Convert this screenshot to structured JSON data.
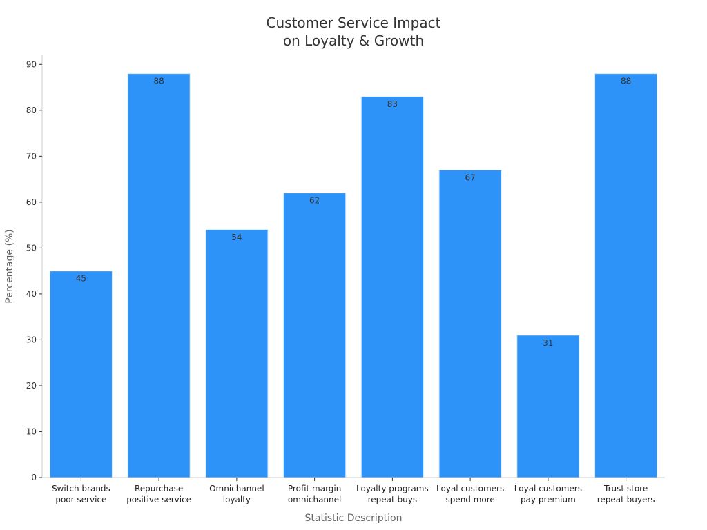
{
  "chart_data": {
    "type": "bar",
    "title": [
      "Customer Service Impact",
      "on Loyalty & Growth"
    ],
    "xlabel": "Statistic Description",
    "ylabel": "Percentage (%)",
    "ylim": [
      0,
      92
    ],
    "yticks": [
      0,
      10,
      20,
      30,
      40,
      50,
      60,
      70,
      80,
      90
    ],
    "grid": false,
    "bar_color": "#2E93F8",
    "categories": [
      [
        "Switch brands",
        "poor service"
      ],
      [
        "Repurchase",
        "positive service"
      ],
      [
        "Omnichannel",
        "loyalty"
      ],
      [
        "Profit margin",
        "omnichannel"
      ],
      [
        "Loyalty programs",
        "repeat buys"
      ],
      [
        "Loyal customers",
        "spend more"
      ],
      [
        "Loyal customers",
        "pay premium"
      ],
      [
        "Trust store",
        "repeat buyers"
      ]
    ],
    "values": [
      45,
      88,
      54,
      62,
      83,
      67,
      31,
      88
    ]
  }
}
